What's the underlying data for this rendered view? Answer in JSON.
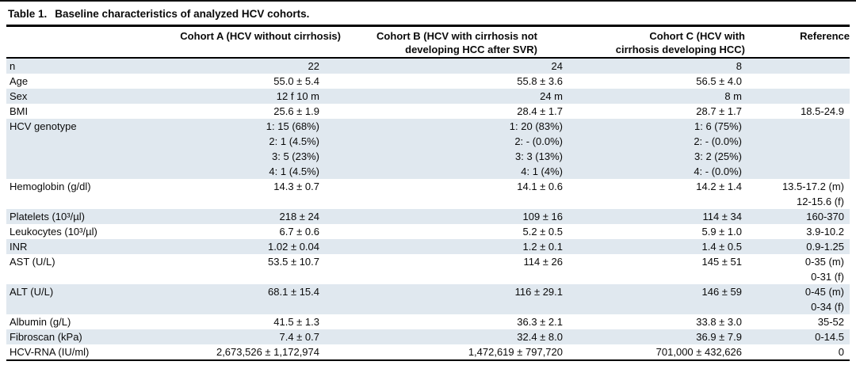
{
  "page": {
    "background_color": "#ffffff",
    "shaded_row_color": "#e0e8ef",
    "rule_color": "#000000"
  },
  "table": {
    "title_prefix": "Table 1.",
    "title_text": "Baseline characteristics of analyzed HCV cohorts.",
    "headers": {
      "label": "",
      "cohort_a": "Cohort A (HCV without cirrhosis)",
      "cohort_b": "Cohort B (HCV with cirrhosis not\ndeveloping HCC after SVR)",
      "cohort_c": "Cohort C (HCV with\ncirrhosis developing HCC)",
      "reference": "Reference"
    },
    "rows": [
      {
        "label": "n",
        "cohort_a": "22",
        "cohort_b": "24",
        "cohort_c": "8",
        "reference": "",
        "shaded": true
      },
      {
        "label": "Age",
        "cohort_a": "55.0 ± 5.4",
        "cohort_b": "55.8 ± 3.6",
        "cohort_c": "56.5 ± 4.0",
        "reference": "",
        "shaded": false
      },
      {
        "label": "Sex",
        "cohort_a": "12 f 10 m",
        "cohort_b": "24 m",
        "cohort_c": "8 m",
        "reference": "",
        "shaded": true
      },
      {
        "label": "BMI",
        "cohort_a": "25.6 ± 1.9",
        "cohort_b": "28.4 ± 1.7",
        "cohort_c": "28.7 ± 1.7",
        "reference": "18.5-24.9",
        "shaded": false
      },
      {
        "label": "HCV genotype",
        "cohort_a": [
          "1: 15 (68%)",
          "2: 1 (4.5%)",
          "3: 5 (23%)",
          "4: 1 (4.5%)"
        ],
        "cohort_b": [
          "1: 20 (83%)",
          "2: - (0.0%)",
          "3: 3 (13%)",
          "4: 1 (4%)"
        ],
        "cohort_c": [
          "1: 6 (75%)",
          "2: - (0.0%)",
          "3: 2 (25%)",
          "4: - (0.0%)"
        ],
        "reference": "",
        "shaded": true
      },
      {
        "label": "Hemoglobin (g/dl)",
        "cohort_a": "14.3 ± 0.7",
        "cohort_b": "14.1 ± 0.6",
        "cohort_c": "14.2 ± 1.4",
        "reference": [
          "13.5-17.2 (m)",
          "12-15.6 (f)"
        ],
        "shaded": false
      },
      {
        "label": "Platelets (10³/µl)",
        "cohort_a": "218 ± 24",
        "cohort_b": "109 ± 16",
        "cohort_c": "114 ± 34",
        "reference": "160-370",
        "shaded": true
      },
      {
        "label": "Leukocytes (10³/µl)",
        "cohort_a": "6.7 ± 0.6",
        "cohort_b": "5.2 ± 0.5",
        "cohort_c": "5.9 ± 1.0",
        "reference": "3.9-10.2",
        "shaded": false
      },
      {
        "label": "INR",
        "cohort_a": "1.02 ± 0.04",
        "cohort_b": "1.2 ± 0.1",
        "cohort_c": "1.4 ± 0.5",
        "reference": "0.9-1.25",
        "shaded": true
      },
      {
        "label": "AST (U/L)",
        "cohort_a": "53.5 ± 10.7",
        "cohort_b": "114 ± 26",
        "cohort_c": "145 ± 51",
        "reference": [
          "0-35 (m)",
          "0-31 (f)"
        ],
        "shaded": false
      },
      {
        "label": "ALT (U/L)",
        "cohort_a": "68.1 ± 15.4",
        "cohort_b": "116 ± 29.1",
        "cohort_c": "146 ± 59",
        "reference": [
          "0-45 (m)",
          "0-34 (f)"
        ],
        "shaded": true
      },
      {
        "label": "Albumin (g/L)",
        "cohort_a": "41.5 ± 1.3",
        "cohort_b": "36.3 ± 2.1",
        "cohort_c": "33.8 ± 3.0",
        "reference": "35-52",
        "shaded": false
      },
      {
        "label": "Fibroscan (kPa)",
        "cohort_a": "7.4 ± 0.7",
        "cohort_b": "32.4 ± 8.0",
        "cohort_c": "36.9 ± 7.9",
        "reference": "0-14.5",
        "shaded": true
      },
      {
        "label": "HCV-RNA (IU/ml)",
        "cohort_a": "2,673,526 ± 1,172,974",
        "cohort_b": "1,472,619 ± 797,720",
        "cohort_c": "701,000 ± 432,626",
        "reference": "0",
        "shaded": false
      }
    ]
  }
}
